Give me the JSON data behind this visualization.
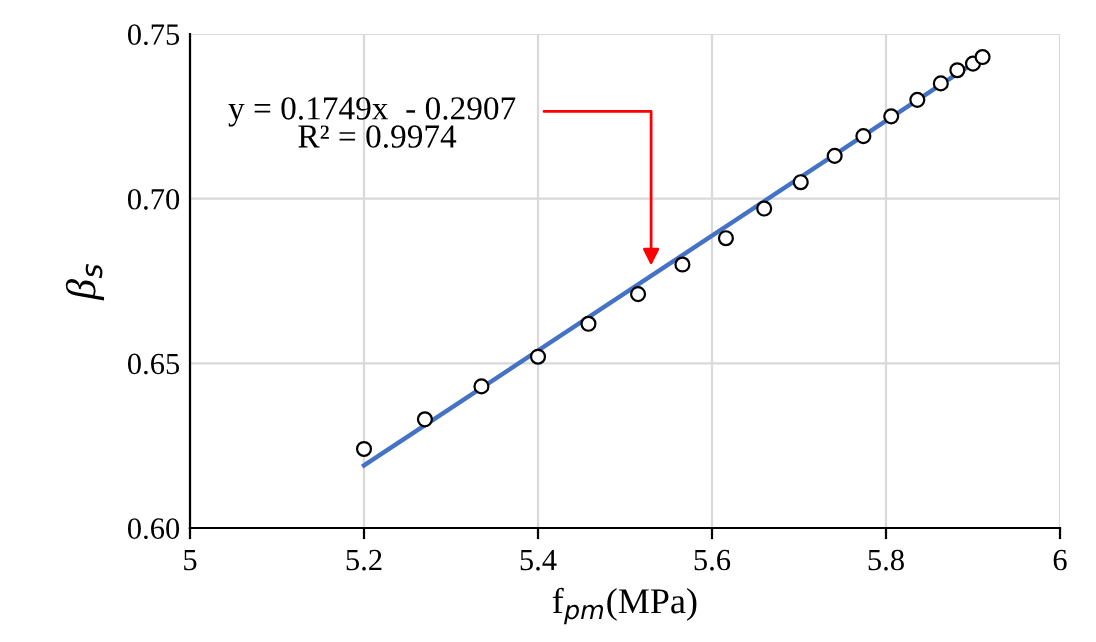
{
  "chart_data": {
    "type": "scatter",
    "xlabel": "f$_{pm}$(MPa)",
    "ylabel": "β$_{s}$",
    "xlim": [
      5,
      6
    ],
    "xticks": [
      5,
      5.2,
      5.4,
      5.6,
      5.8,
      6
    ],
    "ylim": [
      0.6,
      0.75
    ],
    "yticks": [
      {
        "value": 0.6,
        "label": "0.60"
      },
      {
        "value": 0.65,
        "label": "0.65"
      },
      {
        "value": 0.7,
        "label": "0.70"
      },
      {
        "value": 0.75,
        "label": "0.75"
      }
    ],
    "grid": true,
    "series": [
      {
        "marker": "circle",
        "color": "#000000",
        "x": [
          5.2,
          5.27,
          5.335,
          5.4,
          5.458,
          5.515,
          5.566,
          5.616,
          5.66,
          5.702,
          5.741,
          5.774,
          5.806,
          5.836,
          5.863,
          5.882,
          5.9,
          5.911
        ],
        "values": [
          0.624,
          0.633,
          0.643,
          0.652,
          0.662,
          0.671,
          0.68,
          0.688,
          0.697,
          0.705,
          0.713,
          0.719,
          0.725,
          0.73,
          0.735,
          0.739,
          0.741,
          0.743
        ]
      },
      {
        "type": "line",
        "marker": "none",
        "line_style": "solid",
        "color": "#4472c4",
        "x": [
          5.2,
          5.911
        ],
        "values": [
          0.619,
          0.743
        ]
      }
    ],
    "annotations": [
      {
        "text": "y = 0.1749x  - 0.2907",
        "x": 5.53,
        "y": 0.678
      },
      "R² = 0.9974"
    ]
  }
}
